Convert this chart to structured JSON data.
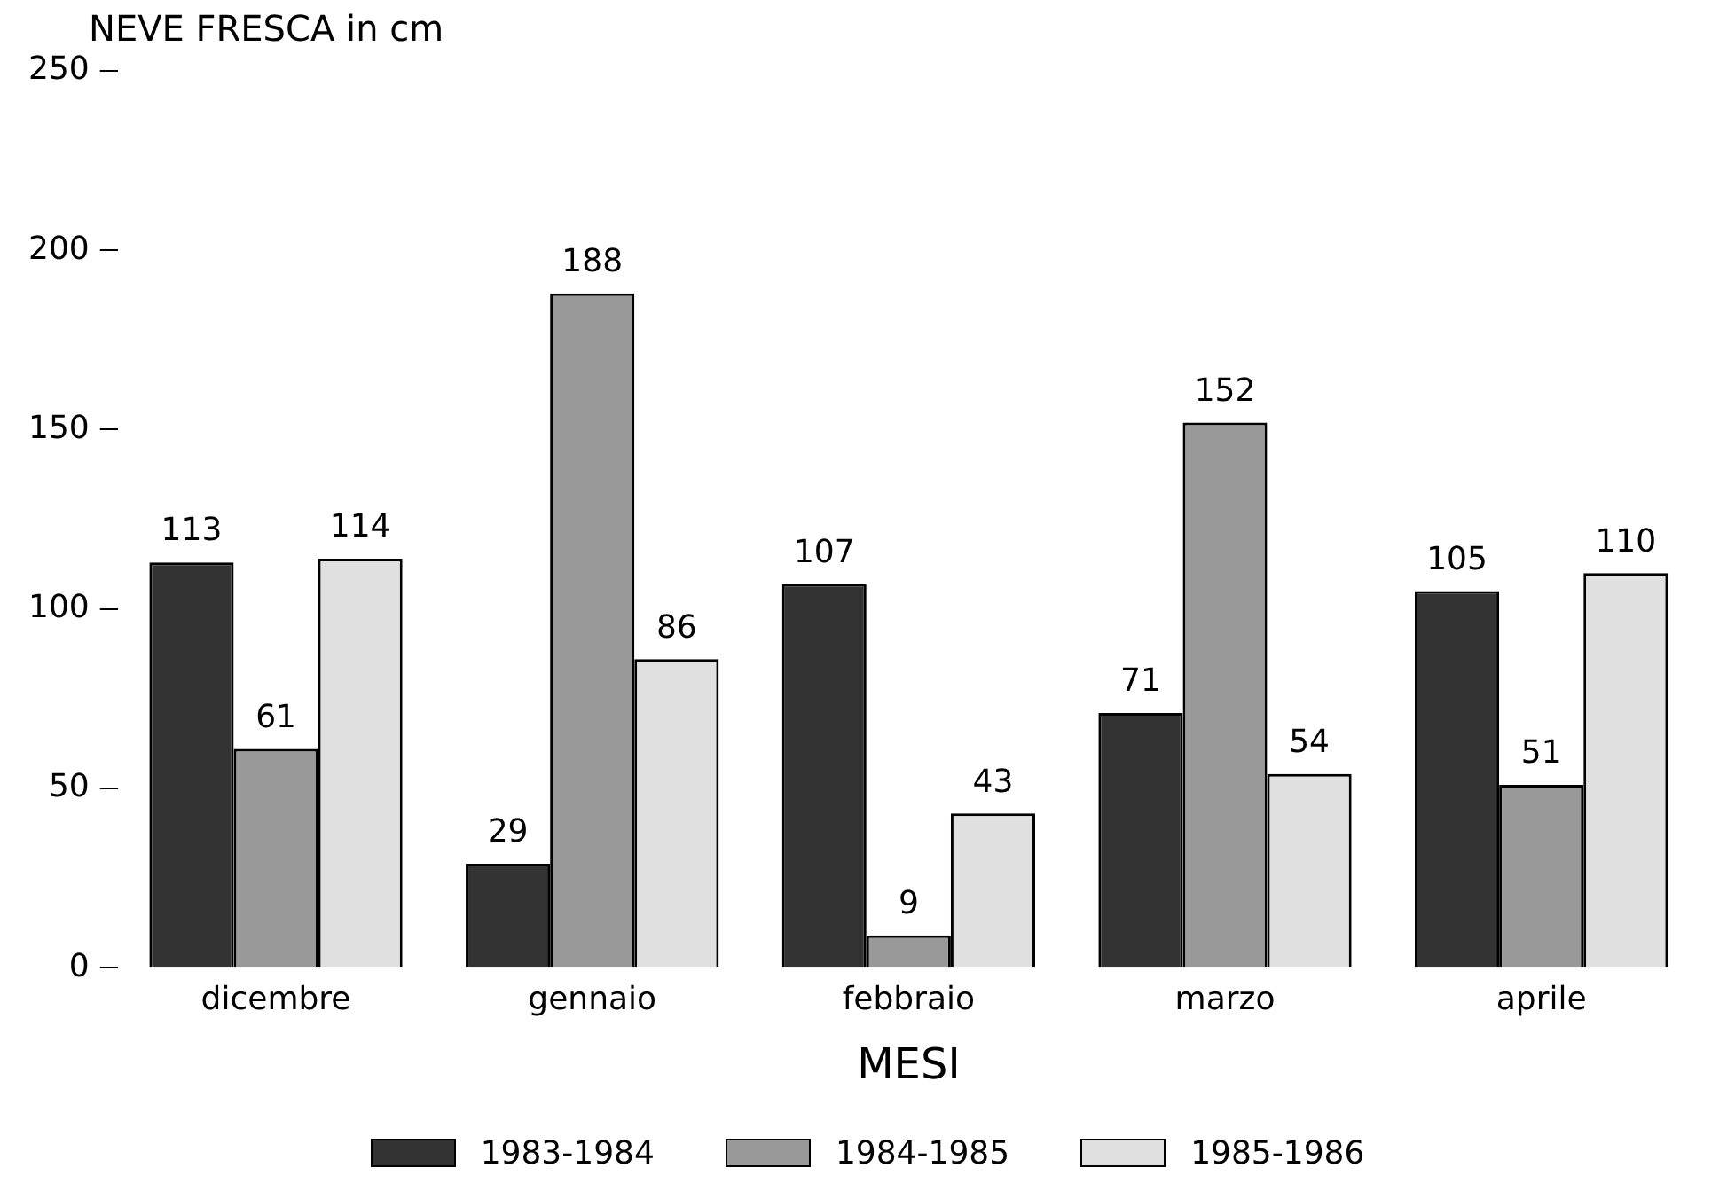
{
  "chart_data": {
    "type": "bar",
    "ylabel": "NEVE FRESCA in cm",
    "xlabel": "MESI",
    "categories": [
      "dicembre",
      "gennaio",
      "febbraio",
      "marzo",
      "aprile"
    ],
    "series": [
      {
        "name": "1983-1984",
        "color": "#333333",
        "values": [
          113,
          29,
          107,
          71,
          105
        ]
      },
      {
        "name": "1984-1985",
        "color": "#999999",
        "values": [
          61,
          188,
          9,
          152,
          51
        ]
      },
      {
        "name": "1985-1986",
        "color": "#e0e0e0",
        "values": [
          114,
          86,
          43,
          54,
          110
        ]
      }
    ],
    "ylim": [
      0,
      250
    ],
    "yticks": [
      0,
      50,
      100,
      150,
      200,
      250
    ],
    "grid": false,
    "legend": "bottom",
    "data_labels": true
  }
}
